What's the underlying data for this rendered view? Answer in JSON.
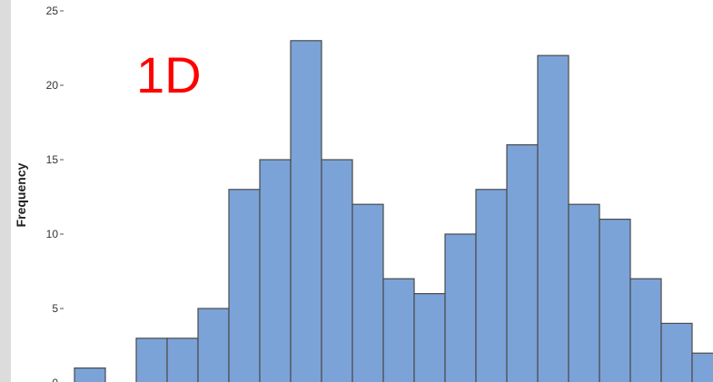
{
  "chart_data": {
    "type": "bar",
    "title": "",
    "xlabel": "",
    "ylabel": "Frequency",
    "ylim": [
      0,
      25
    ],
    "yticks": [
      0,
      5,
      10,
      15,
      20,
      25
    ],
    "grid": false,
    "values": [
      1,
      0,
      3,
      3,
      5,
      13,
      15,
      23,
      15,
      12,
      7,
      6,
      10,
      13,
      16,
      22,
      12,
      11,
      7,
      4,
      2
    ],
    "annotation": "1D",
    "colors": {
      "bar_fill": "#7ba3d8",
      "bar_edge": "#4a4a4a",
      "annotation": "#ff0000",
      "background": "#ffffff"
    }
  }
}
